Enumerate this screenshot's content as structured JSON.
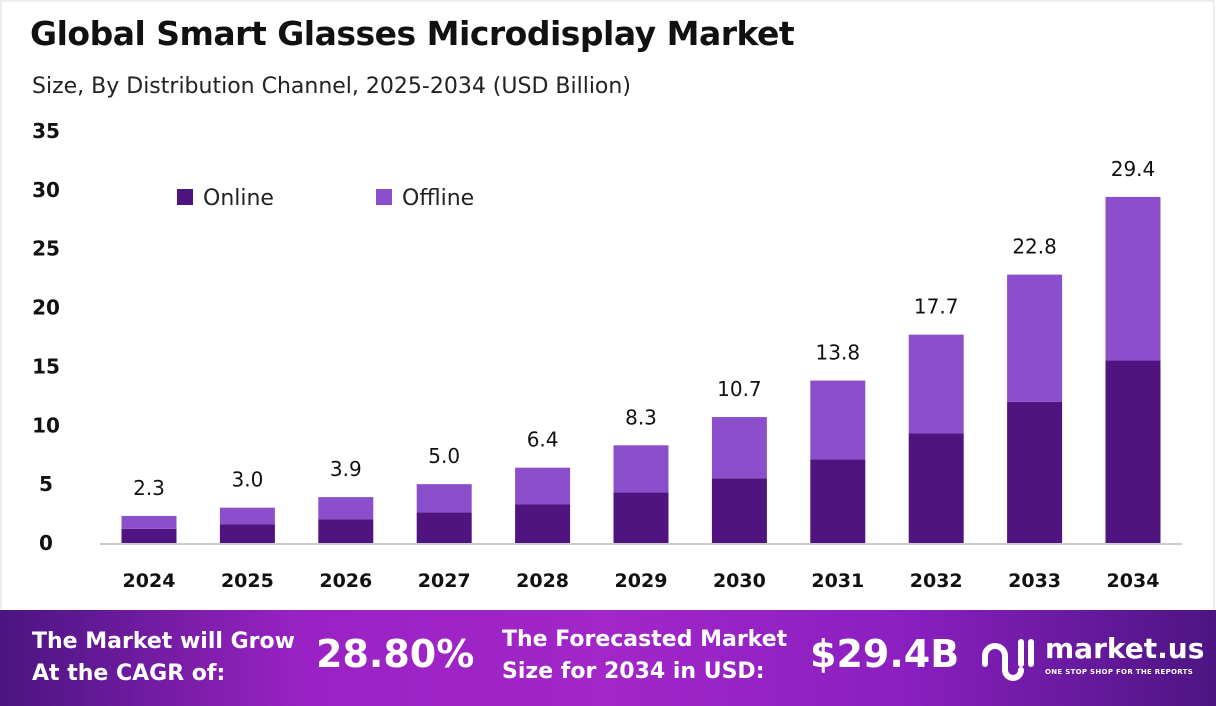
{
  "chart_data": {
    "type": "bar",
    "stacked": true,
    "title": "Global Smart Glasses Microdisplay Market",
    "subtitle": "Size, By Distribution Channel, 2025-2034 (USD Billion)",
    "categories": [
      "2024",
      "2025",
      "2026",
      "2027",
      "2028",
      "2029",
      "2030",
      "2031",
      "2032",
      "2033",
      "2034"
    ],
    "series": [
      {
        "name": "Online",
        "color": "#4f1480",
        "values": [
          1.2,
          1.6,
          2.0,
          2.6,
          3.3,
          4.3,
          5.5,
          7.1,
          9.3,
          12.0,
          15.5
        ]
      },
      {
        "name": "Offline",
        "color": "#8c4fcc",
        "values": [
          1.1,
          1.4,
          1.9,
          2.4,
          3.1,
          4.0,
          5.2,
          6.7,
          8.4,
          10.8,
          13.9
        ]
      }
    ],
    "totals": [
      "2.3",
      "3.0",
      "3.9",
      "5.0",
      "6.4",
      "8.3",
      "10.7",
      "13.8",
      "17.7",
      "22.8",
      "29.4"
    ],
    "yticks": [
      "0",
      "5",
      "10",
      "15",
      "20",
      "25",
      "30",
      "35"
    ],
    "ylim": [
      0,
      35
    ],
    "grid": false,
    "legend": "top-left"
  },
  "footer": {
    "cagr_label_1": "The Market will Grow",
    "cagr_label_2": "At the CAGR of:",
    "cagr_value": "28.80%",
    "forecast_label_1": "The Forecasted Market",
    "forecast_label_2": "Size for 2034 in USD:",
    "forecast_value": "$29.4B",
    "logo_text": "market.us",
    "logo_tagline": "ONE STOP SHOP FOR THE REPORTS"
  }
}
